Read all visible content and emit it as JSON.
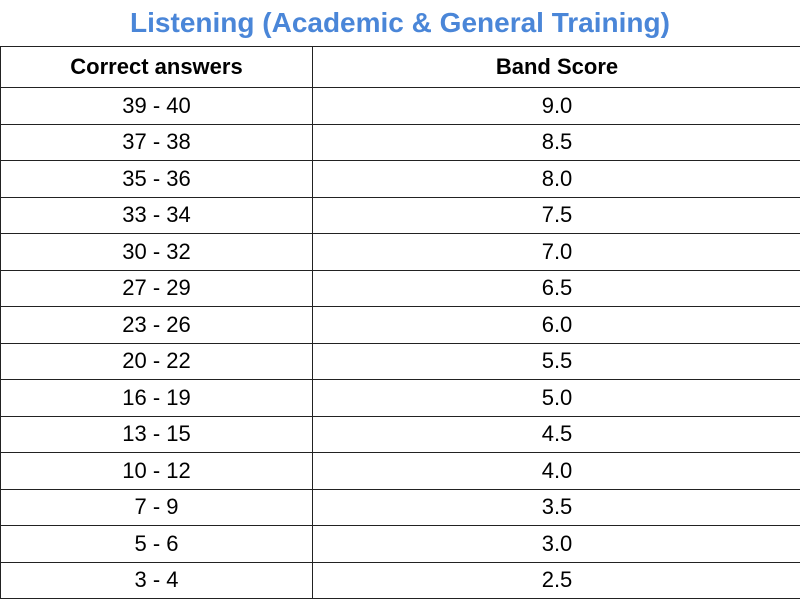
{
  "title": "Listening (Academic & General Training)",
  "table": {
    "header": [
      "Correct answers",
      "Band Score"
    ],
    "rows": [
      [
        "39 - 40",
        "9.0"
      ],
      [
        "37 - 38",
        "8.5"
      ],
      [
        "35 - 36",
        "8.0"
      ],
      [
        "33 - 34",
        "7.5"
      ],
      [
        "30 - 32",
        "7.0"
      ],
      [
        "27 - 29",
        "6.5"
      ],
      [
        "23 - 26",
        "6.0"
      ],
      [
        "20 - 22",
        "5.5"
      ],
      [
        "16 - 19",
        "5.0"
      ],
      [
        "13 - 15",
        "4.5"
      ],
      [
        "10 - 12",
        "4.0"
      ],
      [
        "7 - 9",
        "3.5"
      ],
      [
        "5 - 6",
        "3.0"
      ],
      [
        "3 - 4",
        "2.5"
      ]
    ]
  }
}
